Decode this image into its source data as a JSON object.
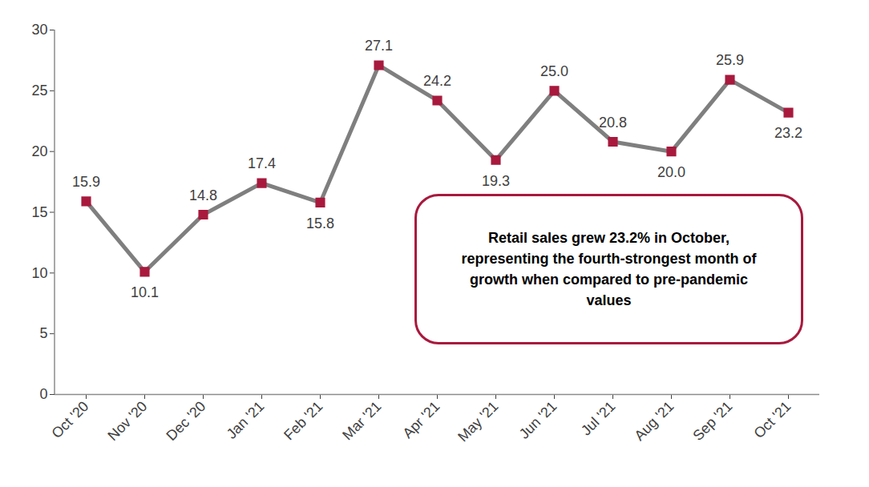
{
  "chart_data": {
    "type": "line",
    "categories": [
      "Oct '20",
      "Nov '20",
      "Dec '20",
      "Jan '21",
      "Feb '21",
      "Mar '21",
      "Apr '21",
      "May '21",
      "Jun '21",
      "Jul '21",
      "Aug '21",
      "Sep '21",
      "Oct '21"
    ],
    "values": [
      15.9,
      10.1,
      14.8,
      17.4,
      15.8,
      27.1,
      24.2,
      19.3,
      25.0,
      20.8,
      20.0,
      25.9,
      23.2
    ],
    "value_labels": [
      "15.9",
      "10.1",
      "14.8",
      "17.4",
      "15.8",
      "27.1",
      "24.2",
      "19.3",
      "25.0",
      "20.8",
      "20.0",
      "25.9",
      "23.2"
    ],
    "color": "#7f7f7f",
    "marker": "square",
    "data_labels": true,
    "grid": false,
    "ylim": [
      0,
      30
    ],
    "yticks": [
      0,
      5,
      10,
      15,
      20,
      25,
      30
    ],
    "annotation": "Retail sales grew 23.2% in October, representing the fourth-strongest month of growth when compared to pre-pandemic values"
  }
}
